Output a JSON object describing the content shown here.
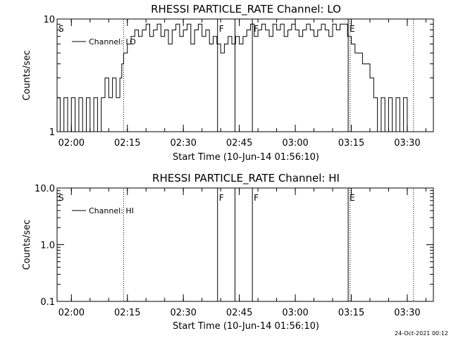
{
  "footer": {
    "timestamp": "24-Oct-2021 00:12"
  },
  "chart_data": [
    {
      "type": "line",
      "title": "RHESSI PARTICLE_RATE Channel: LO",
      "xlabel": "Start Time (10-Jun-14 01:56:10)",
      "ylabel": "Counts/sec",
      "yscale": "log",
      "ylim": [
        1,
        10
      ],
      "xlim": [
        "01:56:10",
        "03:37:00"
      ],
      "yticks": [
        {
          "value": 1,
          "label": "1"
        },
        {
          "value": 10,
          "label": "10"
        }
      ],
      "xticks": [
        {
          "time": "02:00",
          "label": "02:00"
        },
        {
          "time": "02:15",
          "label": "02:15"
        },
        {
          "time": "02:30",
          "label": "02:30"
        },
        {
          "time": "02:45",
          "label": "02:45"
        },
        {
          "time": "03:00",
          "label": "03:00"
        },
        {
          "time": "03:15",
          "label": "03:15"
        },
        {
          "time": "03:30",
          "label": "03:30"
        }
      ],
      "legend": {
        "placement": "top-left",
        "entries": [
          "Channel: LO"
        ]
      },
      "markers": [
        {
          "time": "01:56:10",
          "label": "S",
          "style": "dotted"
        },
        {
          "time": "02:14:00",
          "label": "",
          "style": "dotted"
        },
        {
          "time": "02:39:10",
          "label": "F",
          "style": "solid"
        },
        {
          "time": "02:43:50",
          "label": "",
          "style": "solid"
        },
        {
          "time": "02:48:30",
          "label": "F",
          "style": "solid"
        },
        {
          "time": "03:14:10",
          "label": "E",
          "style": "solid"
        },
        {
          "time": "03:14:40",
          "label": "",
          "style": "dotted"
        },
        {
          "time": "03:31:40",
          "label": "",
          "style": "dotted"
        }
      ],
      "series": [
        {
          "name": "Channel: LO",
          "x": [
            "01:56:10",
            "01:57:00",
            "01:58:00",
            "01:59:00",
            "02:00:00",
            "02:01:00",
            "02:02:00",
            "02:03:00",
            "02:04:00",
            "02:05:00",
            "02:06:00",
            "02:07:00",
            "02:08:00",
            "02:09:00",
            "02:10:00",
            "02:11:00",
            "02:12:00",
            "02:13:00",
            "02:13:30",
            "02:14:00",
            "02:15:00",
            "02:16:00",
            "02:17:00",
            "02:18:00",
            "02:19:00",
            "02:20:00",
            "02:21:00",
            "02:22:00",
            "02:23:00",
            "02:24:00",
            "02:25:00",
            "02:26:00",
            "02:27:00",
            "02:28:00",
            "02:29:00",
            "02:30:00",
            "02:31:00",
            "02:32:00",
            "02:33:00",
            "02:34:00",
            "02:35:00",
            "02:36:00",
            "02:37:00",
            "02:38:00",
            "02:39:00",
            "02:40:00",
            "02:41:00",
            "02:42:00",
            "02:43:00",
            "02:44:00",
            "02:45:00",
            "02:46:00",
            "02:47:00",
            "02:48:00",
            "02:49:00",
            "02:50:00",
            "02:51:00",
            "02:52:00",
            "02:53:00",
            "02:54:00",
            "02:55:00",
            "02:56:00",
            "02:57:00",
            "02:58:00",
            "02:59:00",
            "03:00:00",
            "03:01:00",
            "03:02:00",
            "03:03:00",
            "03:04:00",
            "03:05:00",
            "03:06:00",
            "03:07:00",
            "03:08:00",
            "03:09:00",
            "03:10:00",
            "03:11:00",
            "03:12:00",
            "03:13:00",
            "03:14:00",
            "03:15:00",
            "03:16:00",
            "03:17:00",
            "03:18:00",
            "03:19:00",
            "03:20:00",
            "03:21:00",
            "03:22:00",
            "03:23:00",
            "03:24:00",
            "03:25:00",
            "03:26:00",
            "03:27:00",
            "03:28:00",
            "03:29:00",
            "03:30:00"
          ],
          "y": [
            2,
            1,
            2,
            1,
            2,
            1,
            2,
            1,
            2,
            1,
            2,
            1,
            2,
            3,
            2,
            3,
            2,
            3,
            4,
            5,
            6,
            7,
            8,
            7,
            8,
            9,
            7,
            8,
            9,
            7,
            8,
            6,
            8,
            9,
            7,
            8,
            9,
            6,
            8,
            9,
            7,
            8,
            6,
            7,
            6,
            5,
            6,
            7,
            6,
            7,
            6,
            7,
            8,
            9,
            7,
            8,
            9,
            8,
            7,
            9,
            8,
            9,
            7,
            8,
            9,
            8,
            7,
            8,
            9,
            8,
            7,
            8,
            9,
            8,
            7,
            9,
            8,
            9,
            9,
            7,
            6,
            5,
            5,
            4,
            4,
            3,
            2,
            1,
            2,
            1,
            2,
            1,
            2,
            1,
            2,
            1
          ]
        }
      ]
    },
    {
      "type": "line",
      "title": "RHESSI PARTICLE_RATE Channel: HI",
      "xlabel": "Start Time (10-Jun-14 01:56:10)",
      "ylabel": "Counts/sec",
      "yscale": "log",
      "ylim": [
        0.1,
        10
      ],
      "xlim": [
        "01:56:10",
        "03:37:00"
      ],
      "yticks": [
        {
          "value": 0.1,
          "label": "0.1"
        },
        {
          "value": 1,
          "label": "1.0"
        },
        {
          "value": 10,
          "label": "10.0"
        }
      ],
      "xticks": [
        {
          "time": "02:00",
          "label": "02:00"
        },
        {
          "time": "02:15",
          "label": "02:15"
        },
        {
          "time": "02:30",
          "label": "02:30"
        },
        {
          "time": "02:45",
          "label": "02:45"
        },
        {
          "time": "03:00",
          "label": "03:00"
        },
        {
          "time": "03:15",
          "label": "03:15"
        },
        {
          "time": "03:30",
          "label": "03:30"
        }
      ],
      "legend": {
        "placement": "top-left",
        "entries": [
          "Channel: HI"
        ]
      },
      "markers": [
        {
          "time": "01:56:10",
          "label": "S",
          "style": "dotted"
        },
        {
          "time": "02:14:00",
          "label": "",
          "style": "dotted"
        },
        {
          "time": "02:39:10",
          "label": "F",
          "style": "solid"
        },
        {
          "time": "02:43:50",
          "label": "",
          "style": "solid"
        },
        {
          "time": "02:48:30",
          "label": "F",
          "style": "solid"
        },
        {
          "time": "03:14:10",
          "label": "E",
          "style": "solid"
        },
        {
          "time": "03:14:40",
          "label": "",
          "style": "dotted"
        },
        {
          "time": "03:31:40",
          "label": "",
          "style": "dotted"
        }
      ],
      "series": [
        {
          "name": "Channel: HI",
          "x": [],
          "y": []
        }
      ]
    }
  ]
}
